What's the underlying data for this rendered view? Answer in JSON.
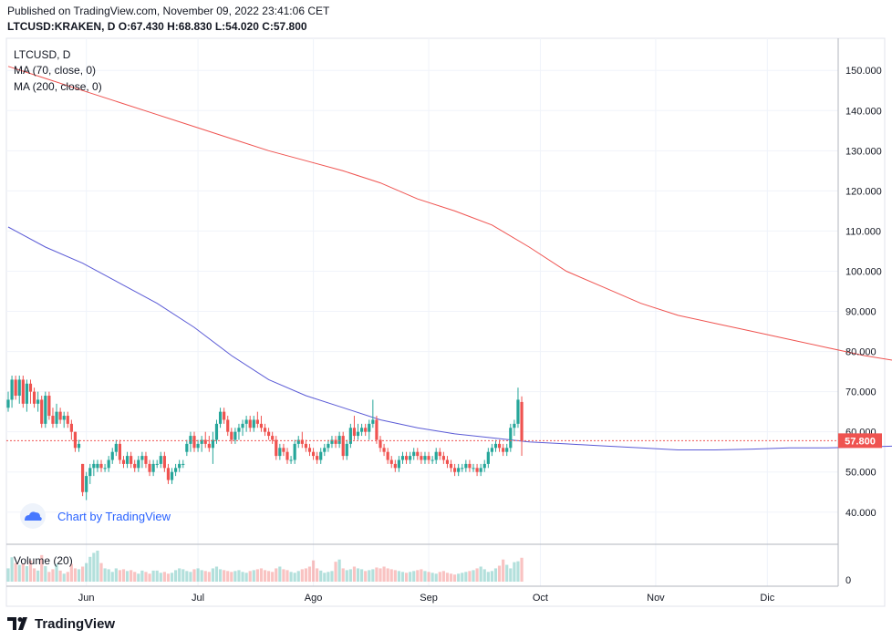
{
  "header": {
    "published": "Published on TradingView.com, November 09, 2022 23:41:06 CET",
    "ohlc": "LTCUSD:KRAKEN, D O:67.430 H:68.830 L:54.020 C:57.800"
  },
  "footer": {
    "brand": "TradingView"
  },
  "watermark": {
    "text": "Chart by TradingView"
  },
  "colors": {
    "up": "#26a69a",
    "down": "#ef5350",
    "ma70": "#5b5bd6",
    "ma200": "#ef5350",
    "price_tag": "#ef5350"
  },
  "chart_data": {
    "type": "candlestick",
    "title": "LTCUSD, D",
    "indicators": [
      "MA (70, close, 0)",
      "MA (200, close, 0)"
    ],
    "volume_title": "Volume (20)",
    "volume_axis_label": "0",
    "ylim": [
      32,
      158
    ],
    "yticks": [
      "40.000",
      "50.000",
      "60.000",
      "70.000",
      "80.000",
      "90.000",
      "100.000",
      "110.000",
      "120.000",
      "130.000",
      "140.000",
      "150.000"
    ],
    "ytick_values": [
      40,
      50,
      60,
      70,
      80,
      90,
      100,
      110,
      120,
      130,
      140,
      150
    ],
    "x_start": "2022-05-11",
    "xticks": [
      {
        "label": "Jun",
        "date": "2022-06-01"
      },
      {
        "label": "Jul",
        "date": "2022-07-01"
      },
      {
        "label": "Ago",
        "date": "2022-08-01"
      },
      {
        "label": "Sep",
        "date": "2022-09-01"
      },
      {
        "label": "Oct",
        "date": "2022-10-01"
      },
      {
        "label": "Nov",
        "date": "2022-11-01"
      },
      {
        "label": "Dic",
        "date": "2022-12-01"
      }
    ],
    "last_price": 57.8,
    "last_price_label": "57.800",
    "candles": [
      [
        66,
        70,
        65,
        68
      ],
      [
        68,
        74,
        66,
        73
      ],
      [
        73,
        74,
        68,
        69
      ],
      [
        69,
        74,
        67,
        73
      ],
      [
        73,
        74,
        66,
        67
      ],
      [
        67,
        73,
        65,
        72
      ],
      [
        72,
        73,
        67,
        70
      ],
      [
        70,
        71,
        66,
        67
      ],
      [
        67,
        70,
        65,
        68
      ],
      [
        68,
        69,
        61,
        62
      ],
      [
        62,
        70,
        61,
        69
      ],
      [
        69,
        70,
        63,
        64
      ],
      [
        64,
        66,
        61,
        62
      ],
      [
        62,
        67,
        61,
        65
      ],
      [
        65,
        66,
        62,
        63
      ],
      [
        63,
        65,
        61,
        64
      ],
      [
        64,
        65,
        61,
        62
      ],
      [
        62,
        63,
        58,
        60
      ],
      [
        60,
        60,
        55,
        56
      ],
      [
        56,
        58,
        55,
        57
      ],
      [
        52,
        52,
        44,
        45
      ],
      [
        45,
        50,
        43,
        49
      ],
      [
        49,
        52,
        47,
        51
      ],
      [
        51,
        53,
        49,
        52
      ],
      [
        51,
        53,
        50,
        52
      ],
      [
        52,
        53,
        50,
        51
      ],
      [
        51,
        52,
        50,
        51
      ],
      [
        51,
        54,
        50,
        53
      ],
      [
        53,
        56,
        52,
        55
      ],
      [
        55,
        58,
        54,
        57
      ],
      [
        57,
        58,
        52,
        53
      ],
      [
        53,
        54,
        51,
        52
      ],
      [
        52,
        55,
        51,
        54
      ],
      [
        54,
        55,
        51,
        52
      ],
      [
        52,
        53,
        50,
        51
      ],
      [
        51,
        54,
        50,
        53
      ],
      [
        53,
        55,
        51,
        54
      ],
      [
        54,
        55,
        51,
        52
      ],
      [
        52,
        53,
        49,
        50
      ],
      [
        50,
        53,
        49,
        52
      ],
      [
        52,
        53,
        51,
        52
      ],
      [
        52,
        55,
        51,
        54
      ],
      [
        54,
        55,
        50,
        51
      ],
      [
        51,
        52,
        47,
        48
      ],
      [
        48,
        51,
        47,
        50
      ],
      [
        50,
        52,
        49,
        51
      ],
      [
        51,
        53,
        50,
        52
      ],
      [
        52,
        53,
        51,
        52
      ],
      [
        55,
        58,
        54,
        57
      ],
      [
        57,
        60,
        55,
        59
      ],
      [
        59,
        60,
        55,
        56
      ],
      [
        56,
        58,
        55,
        57
      ],
      [
        57,
        59,
        55,
        58
      ],
      [
        58,
        60,
        56,
        57
      ],
      [
        57,
        59,
        55,
        56
      ],
      [
        56,
        60,
        52,
        58
      ],
      [
        58,
        63,
        57,
        62
      ],
      [
        62,
        66,
        61,
        65
      ],
      [
        65,
        66,
        62,
        63
      ],
      [
        63,
        64,
        59,
        60
      ],
      [
        60,
        61,
        57,
        58
      ],
      [
        58,
        61,
        57,
        60
      ],
      [
        60,
        62,
        58,
        61
      ],
      [
        61,
        63,
        59,
        62
      ],
      [
        62,
        64,
        60,
        63
      ],
      [
        63,
        64,
        60,
        61
      ],
      [
        61,
        64,
        60,
        63
      ],
      [
        63,
        65,
        61,
        62
      ],
      [
        62,
        64,
        60,
        61
      ],
      [
        61,
        62,
        59,
        60
      ],
      [
        60,
        61,
        58,
        59
      ],
      [
        59,
        60,
        57,
        58
      ],
      [
        58,
        59,
        53,
        54
      ],
      [
        54,
        57,
        53,
        56
      ],
      [
        56,
        57,
        54,
        55
      ],
      [
        55,
        56,
        52,
        53
      ],
      [
        53,
        54,
        52,
        53
      ],
      [
        53,
        58,
        52,
        57
      ],
      [
        57,
        59,
        56,
        58
      ],
      [
        58,
        60,
        56,
        57
      ],
      [
        57,
        58,
        55,
        56
      ],
      [
        56,
        57,
        54,
        55
      ],
      [
        55,
        56,
        53,
        54
      ],
      [
        54,
        55,
        52,
        53
      ],
      [
        53,
        56,
        52,
        55
      ],
      [
        55,
        57,
        54,
        56
      ],
      [
        56,
        58,
        55,
        57
      ],
      [
        57,
        59,
        56,
        58
      ],
      [
        58,
        59,
        56,
        57
      ],
      [
        57,
        60,
        56,
        59
      ],
      [
        59,
        60,
        53,
        54
      ],
      [
        54,
        58,
        53,
        57
      ],
      [
        57,
        62,
        56,
        61
      ],
      [
        61,
        64,
        58,
        59
      ],
      [
        59,
        62,
        58,
        60
      ],
      [
        60,
        62,
        59,
        61
      ],
      [
        61,
        62,
        59,
        60
      ],
      [
        60,
        63,
        58,
        62
      ],
      [
        62,
        68,
        61,
        63
      ],
      [
        63,
        64,
        57,
        58
      ],
      [
        58,
        59,
        55,
        56
      ],
      [
        56,
        57,
        54,
        55
      ],
      [
        55,
        56,
        52,
        53
      ],
      [
        53,
        54,
        51,
        52
      ],
      [
        52,
        53,
        50,
        51
      ],
      [
        51,
        54,
        50,
        53
      ],
      [
        53,
        55,
        52,
        54
      ],
      [
        54,
        55,
        52,
        53
      ],
      [
        53,
        55,
        52,
        54
      ],
      [
        54,
        56,
        53,
        55
      ],
      [
        55,
        56,
        53,
        54
      ],
      [
        54,
        55,
        52,
        53
      ],
      [
        53,
        55,
        52,
        54
      ],
      [
        54,
        55,
        52,
        53
      ],
      [
        53,
        54,
        52,
        53
      ],
      [
        53,
        56,
        52,
        55
      ],
      [
        55,
        56,
        53,
        54
      ],
      [
        54,
        55,
        52,
        53
      ],
      [
        53,
        54,
        51,
        52
      ],
      [
        52,
        53,
        50,
        51
      ],
      [
        51,
        52,
        49,
        50
      ],
      [
        50,
        52,
        49,
        51
      ],
      [
        51,
        52,
        50,
        51
      ],
      [
        51,
        53,
        50,
        52
      ],
      [
        52,
        53,
        50,
        51
      ],
      [
        51,
        52,
        50,
        51
      ],
      [
        51,
        52,
        49,
        50
      ],
      [
        50,
        52,
        49,
        51
      ],
      [
        51,
        53,
        50,
        52
      ],
      [
        52,
        56,
        51,
        55
      ],
      [
        55,
        57,
        54,
        56
      ],
      [
        56,
        58,
        55,
        57
      ],
      [
        57,
        58,
        55,
        56
      ],
      [
        56,
        57,
        54,
        55
      ],
      [
        55,
        57,
        54,
        56
      ],
      [
        56,
        62,
        55,
        61
      ],
      [
        61,
        63,
        59,
        62
      ],
      [
        62,
        71,
        61,
        68
      ],
      [
        67.43,
        68.83,
        54.02,
        57.8
      ]
    ],
    "volumes": [
      30,
      55,
      42,
      38,
      40,
      35,
      48,
      30,
      25,
      60,
      35,
      22,
      28,
      40,
      25,
      18,
      22,
      40,
      30,
      28,
      34,
      42,
      56,
      65,
      70,
      42,
      30,
      28,
      22,
      30,
      26,
      28,
      24,
      26,
      22,
      18,
      25,
      22,
      18,
      25,
      25,
      20,
      22,
      18,
      20,
      26,
      30,
      28,
      24,
      22,
      28,
      30,
      26,
      24,
      22,
      30,
      34,
      28,
      26,
      24,
      22,
      24,
      26,
      22,
      20,
      24,
      26,
      28,
      30,
      26,
      24,
      22,
      30,
      34,
      28,
      26,
      22,
      20,
      24,
      28,
      30,
      34,
      48,
      30,
      25,
      20,
      22,
      24,
      45,
      50,
      30,
      26,
      28,
      34,
      30,
      28,
      24,
      26,
      28,
      32,
      30,
      34,
      30,
      28,
      26,
      24,
      22,
      20,
      22,
      24,
      26,
      28,
      24,
      22,
      20,
      18,
      22,
      24,
      20,
      18,
      16,
      18,
      20,
      22,
      24,
      26,
      30,
      34,
      28,
      22,
      24,
      30,
      36,
      50,
      38,
      30,
      44,
      46,
      54
    ],
    "ma70": [
      [
        0,
        111
      ],
      [
        10,
        106
      ],
      [
        20,
        102
      ],
      [
        30,
        97
      ],
      [
        40,
        92
      ],
      [
        50,
        86
      ],
      [
        60,
        79
      ],
      [
        70,
        73
      ],
      [
        80,
        69
      ],
      [
        90,
        66
      ],
      [
        100,
        63
      ],
      [
        110,
        61
      ],
      [
        120,
        59.5
      ],
      [
        130,
        58.5
      ],
      [
        140,
        57.5
      ],
      [
        150,
        57
      ],
      [
        160,
        56.5
      ],
      [
        170,
        56
      ],
      [
        180,
        55.5
      ],
      [
        190,
        55.5
      ],
      [
        200,
        55.7
      ],
      [
        210,
        56
      ],
      [
        220,
        56
      ],
      [
        230,
        56.2
      ],
      [
        240,
        56.5
      ],
      [
        250,
        56.7
      ],
      [
        255,
        56.5
      ]
    ],
    "ma200": [
      [
        0,
        151
      ],
      [
        10,
        148
      ],
      [
        20,
        145
      ],
      [
        30,
        142
      ],
      [
        40,
        139
      ],
      [
        50,
        136
      ],
      [
        60,
        133
      ],
      [
        70,
        130
      ],
      [
        80,
        127.5
      ],
      [
        90,
        125
      ],
      [
        100,
        122
      ],
      [
        110,
        118
      ],
      [
        120,
        115
      ],
      [
        130,
        111.5
      ],
      [
        140,
        106
      ],
      [
        150,
        100
      ],
      [
        160,
        96
      ],
      [
        170,
        92
      ],
      [
        180,
        89
      ],
      [
        190,
        87
      ],
      [
        200,
        85
      ],
      [
        210,
        83
      ],
      [
        220,
        81
      ],
      [
        230,
        79
      ],
      [
        240,
        77.5
      ],
      [
        250,
        76.5
      ],
      [
        255,
        76
      ]
    ]
  }
}
